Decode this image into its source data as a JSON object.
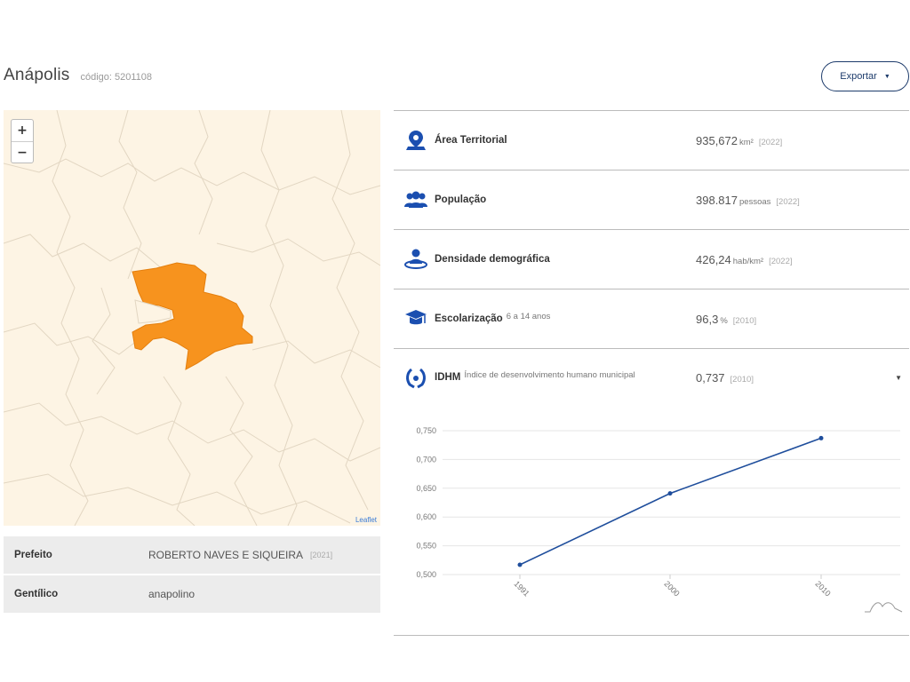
{
  "header": {
    "city_name": "Anápolis",
    "code_text": "código: 5201108",
    "export_label": "Exportar",
    "export_caret": "▼"
  },
  "map": {
    "zoom_in": "+",
    "zoom_out": "−",
    "attribution": "Leaflet",
    "highlight_color": "#f7931e",
    "background_color": "#fdf4e4"
  },
  "info": [
    {
      "label": "Prefeito",
      "value": "ROBERTO NAVES E SIQUEIRA",
      "year": "[2021]"
    },
    {
      "label": "Gentílico",
      "value": "anapolino",
      "year": ""
    }
  ],
  "indicators": [
    {
      "icon": "map-pin-icon",
      "label": "Área Territorial",
      "sub": "",
      "value": "935,672",
      "unit": "km²",
      "year": "[2022]"
    },
    {
      "icon": "people-icon",
      "label": "População",
      "sub": "",
      "value": "398.817",
      "unit": "pessoas",
      "year": "[2022]"
    },
    {
      "icon": "person-density-icon",
      "label": "Densidade demográfica",
      "sub": "",
      "value": "426,24",
      "unit": "hab/km²",
      "year": "[2022]"
    },
    {
      "icon": "graduation-cap-icon",
      "label": "Escolarização",
      "sub": "6 a 14 anos",
      "value": "96,3",
      "unit": "%",
      "year": "[2010]"
    }
  ],
  "idhm": {
    "icon": "laurel-icon",
    "label": "IDHM",
    "sub": "Índice de desenvolvimento humano municipal",
    "value": "0,737",
    "year": "[2010]",
    "caret": "▼"
  },
  "chart_data": {
    "type": "line",
    "x": [
      "1991",
      "2000",
      "2010"
    ],
    "series": [
      {
        "values": [
          0.517,
          0.641,
          0.737
        ]
      }
    ],
    "y_ticks": [
      "0,750",
      "0,700",
      "0,650",
      "0,600",
      "0,550",
      "0,500"
    ],
    "ylim": [
      0.5,
      0.75
    ],
    "line_color": "#1f4e9c",
    "grid": true
  },
  "colors": {
    "accent": "#1d3b6b",
    "icon_blue": "#1b4fb0"
  }
}
